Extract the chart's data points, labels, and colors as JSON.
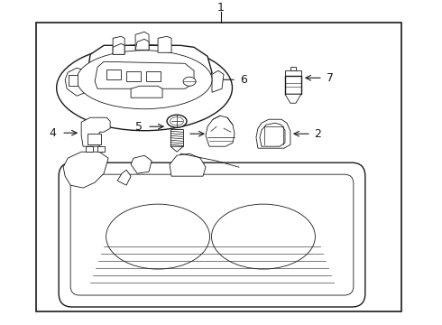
{
  "bg_color": "#ffffff",
  "line_color": "#1a1a1a",
  "label_color": "#000000",
  "border_color": "#000000",
  "fig_width": 4.9,
  "fig_height": 3.6,
  "dpi": 100
}
